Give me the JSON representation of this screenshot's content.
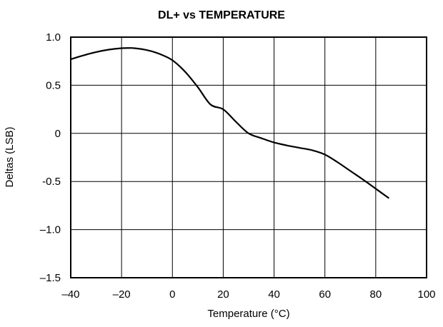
{
  "chart_data": {
    "type": "line",
    "title": "DL+ vs TEMPERATURE",
    "xlabel": "Temperature (°C)",
    "ylabel": "Deltas (LSB)",
    "xlim": [
      -40,
      100
    ],
    "ylim": [
      -1.5,
      1.0
    ],
    "xticks": [
      -40,
      -20,
      0,
      20,
      40,
      60,
      80,
      100
    ],
    "xtick_labels": [
      "–40",
      "–20",
      "0",
      "20",
      "40",
      "60",
      "80",
      "100"
    ],
    "yticks": [
      1.0,
      0.5,
      0,
      -0.5,
      -1.0,
      -1.5
    ],
    "ytick_labels": [
      "1.0",
      "0.5",
      "0",
      "-0.5",
      "–1.0",
      "–1.5"
    ],
    "grid": true,
    "series": [
      {
        "name": "",
        "color": "#000000",
        "x": [
          -40,
          -35,
          -30,
          -25,
          -20,
          -17,
          -15,
          -10,
          -5,
          0,
          5,
          10,
          15,
          20,
          25,
          30,
          35,
          40,
          45,
          50,
          55,
          60,
          65,
          70,
          75,
          80,
          85
        ],
        "y": [
          0.77,
          0.81,
          0.845,
          0.87,
          0.885,
          0.887,
          0.885,
          0.865,
          0.825,
          0.76,
          0.64,
          0.48,
          0.3,
          0.25,
          0.12,
          0.0,
          -0.05,
          -0.095,
          -0.125,
          -0.15,
          -0.175,
          -0.22,
          -0.3,
          -0.39,
          -0.48,
          -0.575,
          -0.67
        ]
      }
    ]
  }
}
